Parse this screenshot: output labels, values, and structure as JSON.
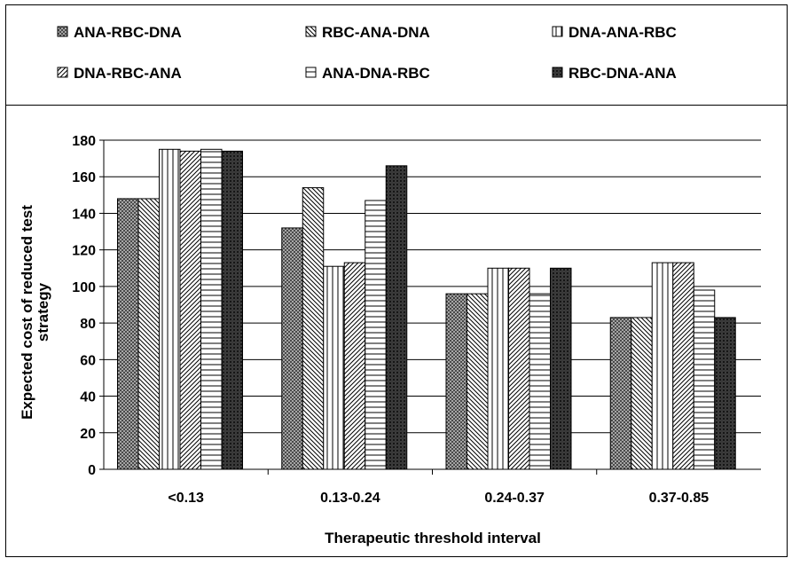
{
  "chart_data": {
    "type": "bar",
    "categories": [
      "<0.13",
      "0.13-0.24",
      "0.24-0.37",
      "0.37-0.85"
    ],
    "series": [
      {
        "name": "ANA-RBC-DNA",
        "pattern": "crosshatch",
        "values": [
          148,
          132,
          96,
          83
        ]
      },
      {
        "name": "RBC-ANA-DNA",
        "pattern": "diag-back",
        "values": [
          148,
          154,
          96,
          83
        ]
      },
      {
        "name": "DNA-ANA-RBC",
        "pattern": "vertical",
        "values": [
          175,
          111,
          110,
          113
        ]
      },
      {
        "name": "DNA-RBC-ANA",
        "pattern": "diag-forward",
        "values": [
          174,
          113,
          110,
          113
        ]
      },
      {
        "name": "ANA-DNA-RBC",
        "pattern": "horizontal",
        "values": [
          175,
          147,
          96,
          98
        ]
      },
      {
        "name": "RBC-DNA-ANA",
        "pattern": "dense",
        "values": [
          174,
          166,
          110,
          83
        ]
      }
    ],
    "title": "",
    "xlabel": "Therapeutic threshold interval",
    "ylabel": "Expected cost of reduced test strategy",
    "ylim": [
      0,
      180
    ],
    "yticks": [
      0,
      20,
      40,
      60,
      80,
      100,
      120,
      140,
      160,
      180
    ],
    "grid": true,
    "legend_position": "top"
  }
}
